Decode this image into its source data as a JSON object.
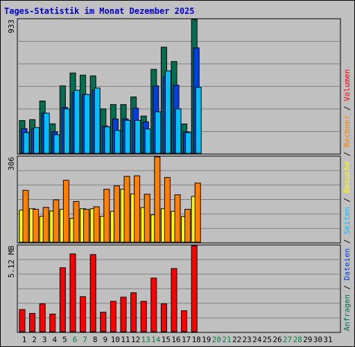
{
  "chart_data": {
    "type": "bar",
    "title": "Tages-Statistik im Monat Dezember 2025",
    "days": [
      "1",
      "2",
      "3",
      "4",
      "5",
      "6",
      "7",
      "8",
      "9",
      "10",
      "11",
      "12",
      "13",
      "14",
      "15",
      "16",
      "17",
      "18",
      "19",
      "20",
      "21",
      "22",
      "23",
      "24",
      "25",
      "26",
      "27",
      "28",
      "29",
      "30",
      "31"
    ],
    "weekend_days": [
      "6",
      "7",
      "13",
      "14",
      "20",
      "21",
      "27",
      "28"
    ],
    "colors": {
      "title": "#0000cc",
      "weekend": "#008040",
      "anfragen": "#007050",
      "dateien": "#0040e0",
      "seiten": "#00c0ff",
      "besuche": "#ffff00",
      "rechner": "#ff8000",
      "volumen": "#ff0000",
      "grid": "#808080"
    },
    "panels": [
      {
        "max_label": "933",
        "ylim": [
          0,
          933
        ],
        "series": [
          {
            "name": "Anfragen",
            "values": [
              229,
              235,
              365,
              206,
              470,
              560,
              545,
              540,
              310,
              340,
              340,
              393,
              260,
              585,
              740,
              640,
              205,
              933,
              0,
              0,
              0,
              0,
              0,
              0,
              0,
              0,
              0,
              0,
              0,
              0,
              0
            ]
          },
          {
            "name": "Dateien",
            "values": [
              172,
              172,
              280,
              150,
              320,
              425,
              410,
              440,
              190,
              240,
              240,
              315,
              220,
              470,
              535,
              475,
              150,
              735,
              0,
              0,
              0,
              0,
              0,
              0,
              0,
              0,
              0,
              0,
              0,
              0,
              0
            ]
          },
          {
            "name": "Seiten",
            "values": [
              145,
              180,
              280,
              130,
              310,
              440,
              410,
              455,
              185,
              160,
              230,
              230,
              170,
              290,
              575,
              310,
              145,
              460,
              0,
              0,
              0,
              0,
              0,
              0,
              0,
              0,
              0,
              0,
              0,
              0,
              0
            ]
          }
        ]
      },
      {
        "max_label": "306",
        "ylim": [
          0,
          306
        ],
        "series": [
          {
            "name": "Besuche",
            "values": [
              115,
              120,
              93,
              112,
              118,
              86,
              120,
              120,
              93,
              111,
              190,
              173,
              124,
              98,
              120,
              111,
              92,
              164,
              0,
              0,
              0,
              0,
              0,
              0,
              0,
              0,
              0,
              0,
              0,
              0,
              0
            ]
          },
          {
            "name": "Rechner",
            "values": [
              186,
              118,
              125,
              152,
              222,
              146,
              118,
              127,
              190,
              202,
              236,
              238,
              172,
              306,
              232,
              170,
              118,
              212,
              0,
              0,
              0,
              0,
              0,
              0,
              0,
              0,
              0,
              0,
              0,
              0,
              0
            ]
          }
        ]
      },
      {
        "max_label": "5.12 MB",
        "ylim": [
          0,
          5.12
        ],
        "series": [
          {
            "name": "Volumen",
            "values": [
              1.32,
              1.09,
              1.66,
              1.05,
              3.81,
              4.63,
              2.09,
              4.59,
              1.16,
              1.81,
              2.06,
              2.32,
              1.81,
              3.19,
              1.66,
              3.76,
              1.25,
              5.12,
              0,
              0,
              0,
              0,
              0,
              0,
              0,
              0,
              0,
              0,
              0,
              0,
              0
            ]
          }
        ]
      }
    ],
    "legend": [
      {
        "name": "Anfragen",
        "color": "#007050"
      },
      {
        "name": "Dateien",
        "color": "#0040e0"
      },
      {
        "name": "Seiten",
        "color": "#00c0ff"
      },
      {
        "name": "Besuche",
        "color": "#ffff00"
      },
      {
        "name": "Rechner",
        "color": "#ff8000"
      },
      {
        "name": "Volumen",
        "color": "#ff0000"
      }
    ],
    "legend_separator": " / "
  }
}
